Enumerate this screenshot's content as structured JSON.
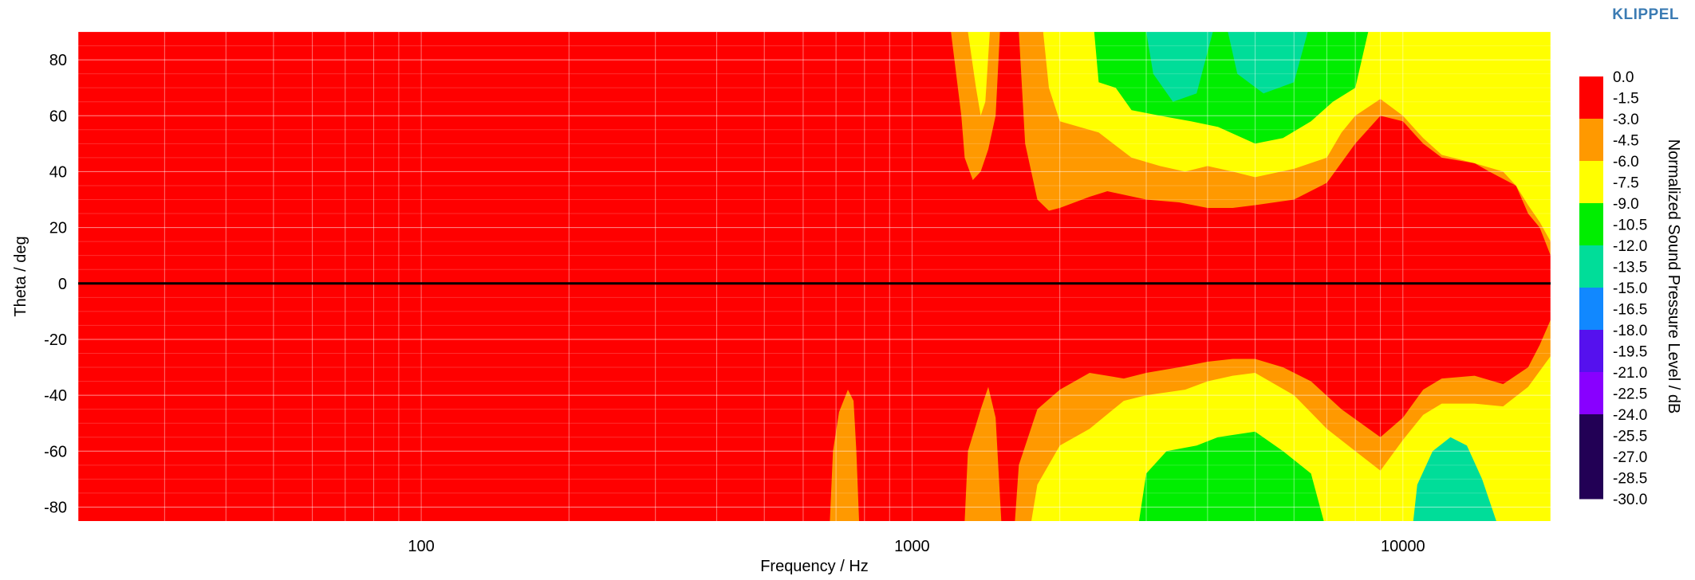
{
  "brand": "KLIPPEL",
  "chart_data": {
    "type": "heatmap",
    "title": "",
    "xlabel": "Frequency / Hz",
    "ylabel": "Theta / deg",
    "xscale": "log",
    "xlim": [
      20,
      20000
    ],
    "ylim": [
      -85,
      90
    ],
    "x_ticks": [
      100,
      1000,
      10000
    ],
    "x_tick_labels": [
      "100",
      "1000",
      "10000"
    ],
    "y_ticks": [
      80,
      60,
      40,
      20,
      0,
      -20,
      -40,
      -60,
      -80
    ],
    "y_tick_labels": [
      "80",
      "60",
      "40",
      "20",
      "0",
      "-20",
      "-40",
      "-60",
      "-80"
    ],
    "grid": true,
    "reference_line_theta": 0,
    "colorbar": {
      "label": "Normalized Sound Pressure Level / dB",
      "tick_labels": [
        "0.0",
        "-1.5",
        "-3.0",
        "-4.5",
        "-6.0",
        "-7.5",
        "-9.0",
        "-10.5",
        "-12.0",
        "-13.5",
        "-15.0",
        "-16.5",
        "-18.0",
        "-19.5",
        "-21.0",
        "-22.5",
        "-24.0",
        "-25.5",
        "-27.0",
        "-28.5",
        "-30.0"
      ],
      "bands": [
        {
          "from": 0.0,
          "to": -3.0,
          "color": "#ff0000"
        },
        {
          "from": -3.0,
          "to": -6.0,
          "color": "#ff9900"
        },
        {
          "from": -6.0,
          "to": -9.0,
          "color": "#ffff00"
        },
        {
          "from": -9.0,
          "to": -12.0,
          "color": "#00ee00"
        },
        {
          "from": -12.0,
          "to": -15.0,
          "color": "#00dd99"
        },
        {
          "from": -15.0,
          "to": -18.0,
          "color": "#1188ff"
        },
        {
          "from": -18.0,
          "to": -21.0,
          "color": "#5511ee"
        },
        {
          "from": -21.0,
          "to": -24.0,
          "color": "#8800ff"
        },
        {
          "from": -24.0,
          "to": -30.0,
          "color": "#220055"
        }
      ]
    },
    "contours_upper": [
      {
        "level": -3.0,
        "theta_boundary": [
          [
            20,
            90
          ],
          [
            1200,
            90
          ],
          [
            1260,
            60
          ],
          [
            1280,
            45
          ],
          [
            1330,
            37
          ],
          [
            1380,
            40
          ],
          [
            1430,
            48
          ],
          [
            1480,
            60
          ],
          [
            1510,
            90
          ]
        ]
      },
      {
        "level": -3.0,
        "theta_boundary": [
          [
            1650,
            90
          ],
          [
            1700,
            50
          ],
          [
            1800,
            30
          ],
          [
            1900,
            26
          ],
          [
            2000,
            27
          ],
          [
            2300,
            31
          ],
          [
            2500,
            33
          ],
          [
            3000,
            30
          ],
          [
            3500,
            29
          ],
          [
            4000,
            27
          ],
          [
            4500,
            27
          ],
          [
            5000,
            28
          ],
          [
            6000,
            30
          ],
          [
            7000,
            36
          ],
          [
            8000,
            50
          ],
          [
            9000,
            60
          ],
          [
            10000,
            58
          ],
          [
            11000,
            50
          ],
          [
            12000,
            45
          ],
          [
            14000,
            43
          ],
          [
            15000,
            40
          ],
          [
            17000,
            35
          ],
          [
            18000,
            25
          ],
          [
            19000,
            20
          ],
          [
            20000,
            10
          ]
        ]
      },
      {
        "level": -6.0,
        "theta_boundary": [
          [
            1300,
            90
          ],
          [
            1350,
            70
          ],
          [
            1380,
            60
          ],
          [
            1410,
            65
          ],
          [
            1440,
            90
          ]
        ]
      },
      {
        "level": -6.0,
        "theta_boundary": [
          [
            1850,
            90
          ],
          [
            1900,
            70
          ],
          [
            2000,
            58
          ],
          [
            2400,
            54
          ],
          [
            2800,
            45
          ],
          [
            3200,
            42
          ],
          [
            3600,
            40
          ],
          [
            4000,
            42
          ],
          [
            4500,
            40
          ],
          [
            5000,
            38
          ],
          [
            6000,
            41
          ],
          [
            7000,
            45
          ],
          [
            7500,
            54
          ],
          [
            8000,
            60
          ],
          [
            9000,
            66
          ],
          [
            10000,
            60
          ],
          [
            11000,
            52
          ],
          [
            12000,
            46
          ],
          [
            14000,
            43
          ],
          [
            16000,
            40
          ],
          [
            17000,
            35
          ],
          [
            18000,
            28
          ],
          [
            19000,
            22
          ],
          [
            20000,
            15
          ]
        ]
      },
      {
        "level": -9.0,
        "theta_boundary": [
          [
            2350,
            90
          ],
          [
            2400,
            72
          ],
          [
            2600,
            70
          ],
          [
            2800,
            62
          ],
          [
            3200,
            60
          ],
          [
            3700,
            58
          ],
          [
            4200,
            56
          ],
          [
            5000,
            50
          ],
          [
            5700,
            52
          ],
          [
            6500,
            58
          ],
          [
            7200,
            65
          ],
          [
            8000,
            70
          ],
          [
            8500,
            90
          ]
        ]
      },
      {
        "level": -12.0,
        "theta_boundary": [
          [
            3000,
            90
          ],
          [
            3100,
            75
          ],
          [
            3400,
            65
          ],
          [
            3800,
            68
          ],
          [
            4100,
            90
          ]
        ]
      },
      {
        "level": -12.0,
        "theta_boundary": [
          [
            4400,
            90
          ],
          [
            4600,
            75
          ],
          [
            5200,
            68
          ],
          [
            6000,
            72
          ],
          [
            6400,
            90
          ]
        ]
      }
    ],
    "contours_lower": [
      {
        "level": -3.0,
        "theta_boundary": [
          [
            680,
            -85
          ],
          [
            690,
            -60
          ],
          [
            710,
            -46
          ],
          [
            740,
            -38
          ],
          [
            760,
            -42
          ],
          [
            770,
            -60
          ],
          [
            780,
            -85
          ]
        ]
      },
      {
        "level": -3.0,
        "theta_boundary": [
          [
            1280,
            -85
          ],
          [
            1300,
            -60
          ],
          [
            1380,
            -45
          ],
          [
            1430,
            -37
          ],
          [
            1480,
            -48
          ],
          [
            1520,
            -85
          ]
        ]
      },
      {
        "level": -3.0,
        "theta_boundary": [
          [
            1620,
            -85
          ],
          [
            1650,
            -65
          ],
          [
            1800,
            -45
          ],
          [
            2000,
            -38
          ],
          [
            2300,
            -32
          ],
          [
            2700,
            -34
          ],
          [
            3000,
            -32
          ],
          [
            3500,
            -30
          ],
          [
            4000,
            -28
          ],
          [
            4500,
            -27
          ],
          [
            5000,
            -27
          ],
          [
            5700,
            -30
          ],
          [
            6500,
            -35
          ],
          [
            7500,
            -45
          ],
          [
            9000,
            -55
          ],
          [
            10000,
            -48
          ],
          [
            11000,
            -38
          ],
          [
            12000,
            -34
          ],
          [
            14000,
            -33
          ],
          [
            16000,
            -36
          ],
          [
            18000,
            -30
          ],
          [
            19000,
            -22
          ],
          [
            20000,
            -13
          ]
        ]
      },
      {
        "level": -6.0,
        "theta_boundary": [
          [
            1750,
            -85
          ],
          [
            1800,
            -72
          ],
          [
            2000,
            -58
          ],
          [
            2300,
            -52
          ],
          [
            2700,
            -42
          ],
          [
            3000,
            -40
          ],
          [
            3600,
            -38
          ],
          [
            4000,
            -35
          ],
          [
            4500,
            -33
          ],
          [
            5000,
            -32
          ],
          [
            6000,
            -40
          ],
          [
            7000,
            -52
          ],
          [
            8000,
            -60
          ],
          [
            9000,
            -67
          ],
          [
            10000,
            -56
          ],
          [
            11000,
            -47
          ],
          [
            12000,
            -43
          ],
          [
            14000,
            -43
          ],
          [
            16000,
            -44
          ],
          [
            18000,
            -37
          ],
          [
            20000,
            -26
          ]
        ]
      },
      {
        "level": -9.0,
        "theta_boundary": [
          [
            2900,
            -85
          ],
          [
            3000,
            -68
          ],
          [
            3300,
            -60
          ],
          [
            3800,
            -58
          ],
          [
            4200,
            -55
          ],
          [
            5000,
            -53
          ],
          [
            5700,
            -60
          ],
          [
            6500,
            -68
          ],
          [
            6900,
            -85
          ]
        ]
      },
      {
        "level": -12.0,
        "theta_boundary": [
          [
            10500,
            -85
          ],
          [
            10700,
            -72
          ],
          [
            11500,
            -60
          ],
          [
            12500,
            -55
          ],
          [
            13500,
            -58
          ],
          [
            14500,
            -70
          ],
          [
            15500,
            -85
          ]
        ]
      }
    ]
  }
}
